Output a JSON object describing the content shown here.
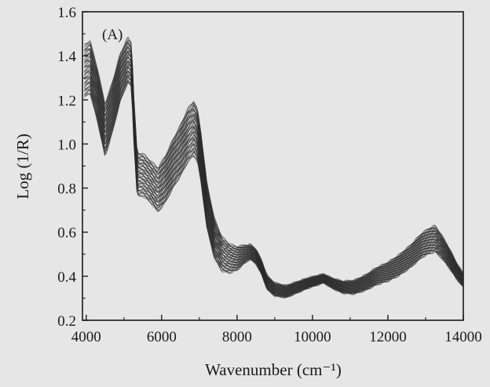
{
  "chart_data": {
    "type": "line",
    "panel_label": "(A)",
    "xlabel": "Wavenumber (cm⁻¹)",
    "ylabel": "Log (1/R)",
    "xlim": [
      3900,
      14000
    ],
    "ylim": [
      0.2,
      1.6
    ],
    "xticks": [
      4000,
      6000,
      8000,
      10000,
      12000,
      14000
    ],
    "yticks": [
      0.2,
      0.4,
      0.6,
      0.8,
      1.0,
      1.2,
      1.4,
      1.6
    ],
    "ytick_labels": [
      "0.2",
      "0.4",
      "0.6",
      "0.8",
      "1.0",
      "1.2",
      "1.4",
      "1.6"
    ],
    "grid": false,
    "series_count": 60,
    "line_color": "#2b2b2b",
    "mean_spectrum": {
      "x": [
        3950,
        4100,
        4300,
        4500,
        4700,
        4900,
        5100,
        5200,
        5260,
        5350,
        5500,
        5700,
        5900,
        6100,
        6300,
        6500,
        6700,
        6850,
        6950,
        7050,
        7200,
        7400,
        7600,
        7800,
        8000,
        8200,
        8350,
        8500,
        8650,
        8800,
        9000,
        9300,
        9600,
        9900,
        10100,
        10300,
        10500,
        10800,
        11100,
        11400,
        11700,
        12000,
        12300,
        12600,
        12900,
        13100,
        13250,
        13400,
        13600,
        13800,
        14000
      ],
      "y": [
        1.33,
        1.35,
        1.22,
        1.06,
        1.17,
        1.3,
        1.38,
        1.36,
        1.12,
        0.86,
        0.86,
        0.83,
        0.79,
        0.84,
        0.91,
        0.97,
        1.04,
        1.07,
        1.04,
        0.93,
        0.72,
        0.57,
        0.5,
        0.48,
        0.48,
        0.5,
        0.51,
        0.49,
        0.44,
        0.37,
        0.34,
        0.33,
        0.35,
        0.37,
        0.38,
        0.39,
        0.37,
        0.35,
        0.35,
        0.37,
        0.4,
        0.42,
        0.45,
        0.49,
        0.54,
        0.56,
        0.57,
        0.54,
        0.49,
        0.43,
        0.38
      ]
    },
    "spread_at_x": {
      "x": [
        3950,
        4500,
        5200,
        5700,
        6850,
        8300,
        10300,
        13250,
        14000
      ],
      "y_range": [
        [
          1.22,
          1.46
        ],
        [
          0.92,
          1.16
        ],
        [
          1.26,
          1.46
        ],
        [
          0.74,
          0.93
        ],
        [
          0.92,
          1.17
        ],
        [
          0.47,
          0.54
        ],
        [
          0.37,
          0.41
        ],
        [
          0.51,
          0.63
        ],
        [
          0.35,
          0.41
        ]
      ]
    }
  }
}
